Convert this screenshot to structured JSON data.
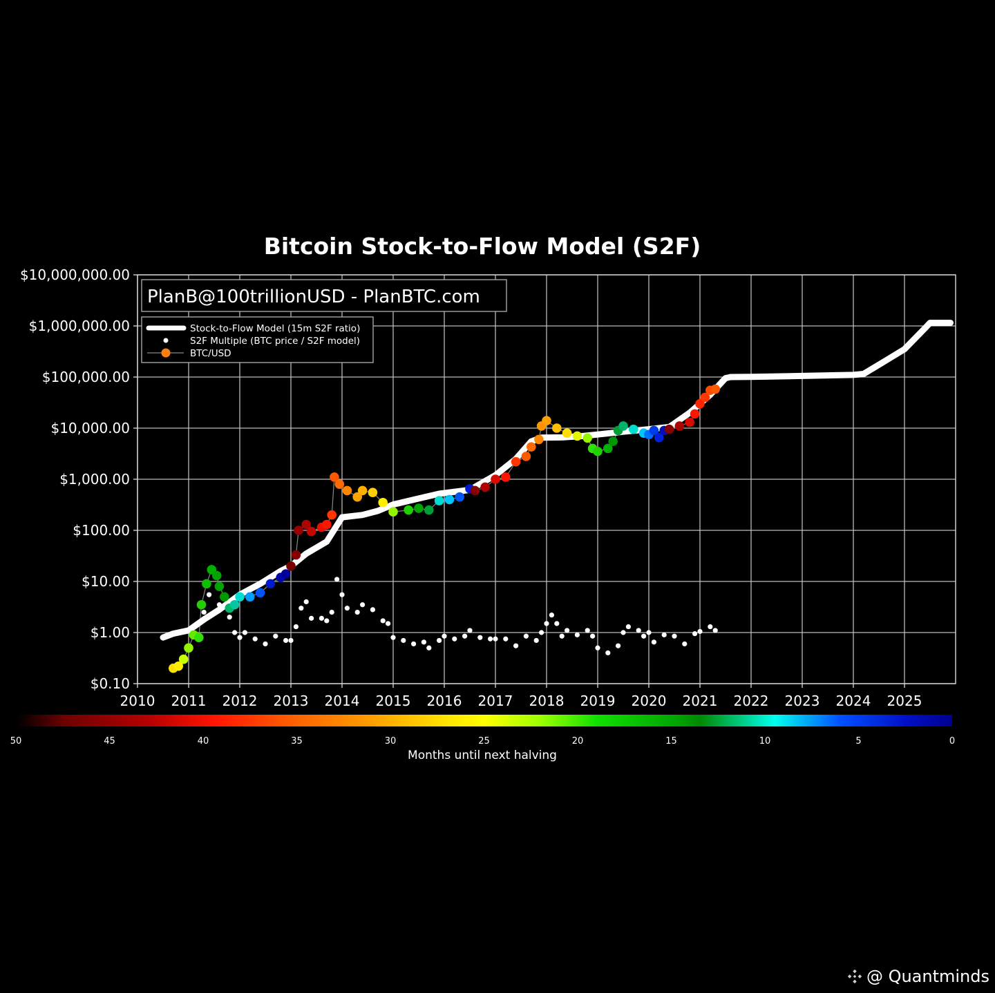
{
  "chart_data": {
    "type": "scatter",
    "title": "Bitcoin Stock-to-Flow Model (S2F)",
    "credit_box": "PlanB@100trillionUSD - PlanBTC.com",
    "xlabel": "",
    "ylabel": "",
    "yscale": "log",
    "ylim": [
      0.1,
      10000000
    ],
    "xlim": [
      2010,
      2026
    ],
    "grid": true,
    "legend_position": "upper left",
    "y_ticks": [
      "$10,000,000.00",
      "$1,000,000.00",
      "$100,000.00",
      "$10,000.00",
      "$1,000.00",
      "$100.00",
      "$10.00",
      "$1.00",
      "$0.10"
    ],
    "y_tick_values": [
      10000000,
      1000000,
      100000,
      10000,
      1000,
      100,
      10,
      1,
      0.1
    ],
    "x_ticks": [
      "2010",
      "2011",
      "2012",
      "2013",
      "2014",
      "2015",
      "2016",
      "2017",
      "2018",
      "2019",
      "2020",
      "2021",
      "2022",
      "2023",
      "2024",
      "2025"
    ],
    "legend": [
      {
        "label": "Stock-to-Flow Model (15m S2F ratio)",
        "marker": "thick-line",
        "color": "#ffffff"
      },
      {
        "label": "S2F Multiple (BTC price / S2F model)",
        "marker": "small-dot",
        "color": "#ffffff"
      },
      {
        "label": "BTC/USD",
        "marker": "line-dot",
        "color": "#ff7f0e"
      }
    ],
    "colorbar": {
      "label": "Months until next halving",
      "ticks": [
        "50",
        "45",
        "40",
        "35",
        "30",
        "25",
        "20",
        "15",
        "10",
        "5",
        "0"
      ],
      "colormap": "jet-like (dark red → red → orange → yellow → green → dark green → cyan → blue → dark blue)",
      "stops": [
        "#2a0000",
        "#a00000",
        "#ff1a00",
        "#ff8c00",
        "#ffe000",
        "#ffff00",
        "#80ff00",
        "#00cc00",
        "#008a00",
        "#00ffee",
        "#0060ff",
        "#0000a0"
      ]
    },
    "series": [
      {
        "name": "Stock-to-Flow Model (15m S2F ratio)",
        "color": "#ffffff",
        "points": [
          [
            2010.5,
            0.8
          ],
          [
            2010.7,
            0.95
          ],
          [
            2011.0,
            1.1
          ],
          [
            2011.3,
            1.8
          ],
          [
            2011.6,
            2.8
          ],
          [
            2012.0,
            5.5
          ],
          [
            2012.4,
            9
          ],
          [
            2012.8,
            16
          ],
          [
            2013.0,
            20
          ],
          [
            2013.3,
            35
          ],
          [
            2013.7,
            60
          ],
          [
            2014.0,
            180
          ],
          [
            2014.4,
            200
          ],
          [
            2014.7,
            240
          ],
          [
            2015.0,
            320
          ],
          [
            2015.5,
            420
          ],
          [
            2015.9,
            520
          ],
          [
            2016.5,
            620
          ],
          [
            2017.0,
            1200
          ],
          [
            2017.4,
            2500
          ],
          [
            2017.7,
            5500
          ],
          [
            2017.9,
            6500
          ],
          [
            2018.3,
            6600
          ],
          [
            2018.7,
            7000
          ],
          [
            2019.0,
            7500
          ],
          [
            2019.5,
            8500
          ],
          [
            2020.0,
            9500
          ],
          [
            2020.4,
            10500
          ],
          [
            2020.8,
            20000
          ],
          [
            2021.2,
            45000
          ],
          [
            2021.5,
            95000
          ],
          [
            2021.6,
            100000
          ],
          [
            2022.0,
            101000
          ],
          [
            2023.0,
            105000
          ],
          [
            2024.0,
            110000
          ],
          [
            2024.2,
            115000
          ],
          [
            2024.7,
            230000
          ],
          [
            2025.0,
            350000
          ],
          [
            2025.4,
            900000
          ],
          [
            2025.5,
            1150000
          ],
          [
            2025.9,
            1150000
          ]
        ]
      },
      {
        "name": "S2F Multiple (BTC price / S2F model)",
        "color": "#ffffff",
        "points": [
          [
            2011.3,
            2.5
          ],
          [
            2011.4,
            5.5
          ],
          [
            2011.6,
            3.5
          ],
          [
            2011.8,
            2.0
          ],
          [
            2011.9,
            1.0
          ],
          [
            2012.0,
            0.8
          ],
          [
            2012.1,
            1.0
          ],
          [
            2012.3,
            0.75
          ],
          [
            2012.5,
            0.6
          ],
          [
            2012.7,
            0.85
          ],
          [
            2012.9,
            0.7
          ],
          [
            2013.0,
            0.7
          ],
          [
            2013.1,
            1.3
          ],
          [
            2013.2,
            3.0
          ],
          [
            2013.3,
            4.0
          ],
          [
            2013.4,
            1.9
          ],
          [
            2013.6,
            1.9
          ],
          [
            2013.7,
            1.7
          ],
          [
            2013.8,
            2.5
          ],
          [
            2013.9,
            11
          ],
          [
            2014.0,
            5.5
          ],
          [
            2014.1,
            3.0
          ],
          [
            2014.3,
            2.5
          ],
          [
            2014.4,
            3.5
          ],
          [
            2014.6,
            2.8
          ],
          [
            2014.8,
            1.7
          ],
          [
            2014.9,
            1.5
          ],
          [
            2015.0,
            0.8
          ],
          [
            2015.2,
            0.7
          ],
          [
            2015.4,
            0.6
          ],
          [
            2015.6,
            0.65
          ],
          [
            2015.7,
            0.5
          ],
          [
            2015.9,
            0.7
          ],
          [
            2016.0,
            0.85
          ],
          [
            2016.2,
            0.75
          ],
          [
            2016.4,
            0.85
          ],
          [
            2016.5,
            1.1
          ],
          [
            2016.7,
            0.8
          ],
          [
            2016.9,
            0.75
          ],
          [
            2017.0,
            0.75
          ],
          [
            2017.2,
            0.75
          ],
          [
            2017.4,
            0.55
          ],
          [
            2017.6,
            0.85
          ],
          [
            2017.8,
            0.7
          ],
          [
            2017.9,
            1.0
          ],
          [
            2018.0,
            1.5
          ],
          [
            2018.1,
            2.2
          ],
          [
            2018.2,
            1.5
          ],
          [
            2018.3,
            0.85
          ],
          [
            2018.4,
            1.1
          ],
          [
            2018.6,
            0.9
          ],
          [
            2018.8,
            1.1
          ],
          [
            2018.9,
            0.85
          ],
          [
            2019.0,
            0.5
          ],
          [
            2019.2,
            0.4
          ],
          [
            2019.4,
            0.55
          ],
          [
            2019.5,
            1.0
          ],
          [
            2019.6,
            1.3
          ],
          [
            2019.8,
            1.1
          ],
          [
            2019.9,
            0.85
          ],
          [
            2020.0,
            1.0
          ],
          [
            2020.1,
            0.65
          ],
          [
            2020.3,
            0.9
          ],
          [
            2020.5,
            0.85
          ],
          [
            2020.7,
            0.6
          ],
          [
            2020.9,
            0.95
          ],
          [
            2021.0,
            1.05
          ],
          [
            2021.2,
            1.3
          ],
          [
            2021.3,
            1.1
          ]
        ]
      },
      {
        "name": "BTC/USD",
        "color_by": "months_until_next_halving",
        "points": [
          [
            2010.7,
            0.2,
            27
          ],
          [
            2010.8,
            0.22,
            26
          ],
          [
            2010.9,
            0.3,
            24
          ],
          [
            2011.0,
            0.5,
            23
          ],
          [
            2011.1,
            0.9,
            22
          ],
          [
            2011.2,
            0.8,
            21
          ],
          [
            2011.25,
            3.5,
            20
          ],
          [
            2011.35,
            9,
            19
          ],
          [
            2011.45,
            17,
            18
          ],
          [
            2011.55,
            13,
            17
          ],
          [
            2011.6,
            8,
            17
          ],
          [
            2011.7,
            5,
            16
          ],
          [
            2011.8,
            3,
            13
          ],
          [
            2011.9,
            3.5,
            12
          ],
          [
            2012.0,
            5,
            11
          ],
          [
            2012.2,
            5,
            8
          ],
          [
            2012.4,
            6,
            6
          ],
          [
            2012.6,
            9,
            3
          ],
          [
            2012.8,
            12,
            1
          ],
          [
            2012.9,
            14,
            0
          ],
          [
            2013.0,
            20,
            47
          ],
          [
            2013.1,
            33,
            46
          ],
          [
            2013.15,
            100,
            45
          ],
          [
            2013.3,
            130,
            44
          ],
          [
            2013.4,
            95,
            43
          ],
          [
            2013.6,
            115,
            41
          ],
          [
            2013.7,
            130,
            40
          ],
          [
            2013.8,
            200,
            38
          ],
          [
            2013.85,
            1100,
            36
          ],
          [
            2013.95,
            800,
            35
          ],
          [
            2014.1,
            600,
            33
          ],
          [
            2014.3,
            450,
            31
          ],
          [
            2014.4,
            600,
            30
          ],
          [
            2014.6,
            550,
            28
          ],
          [
            2014.8,
            350,
            26
          ],
          [
            2015.0,
            230,
            23
          ],
          [
            2015.3,
            250,
            20
          ],
          [
            2015.5,
            270,
            17
          ],
          [
            2015.7,
            250,
            14
          ],
          [
            2015.9,
            380,
            11
          ],
          [
            2016.1,
            400,
            9
          ],
          [
            2016.3,
            450,
            6
          ],
          [
            2016.5,
            650,
            3
          ],
          [
            2016.6,
            600,
            46
          ],
          [
            2016.8,
            700,
            44
          ],
          [
            2017.0,
            1000,
            42
          ],
          [
            2017.2,
            1100,
            40
          ],
          [
            2017.4,
            2200,
            38
          ],
          [
            2017.6,
            2800,
            36
          ],
          [
            2017.7,
            4300,
            35
          ],
          [
            2017.85,
            6000,
            33
          ],
          [
            2017.9,
            11000,
            32
          ],
          [
            2018.0,
            14000,
            31
          ],
          [
            2018.2,
            10000,
            29
          ],
          [
            2018.4,
            8000,
            27
          ],
          [
            2018.6,
            7000,
            25
          ],
          [
            2018.8,
            6400,
            23
          ],
          [
            2018.9,
            4000,
            21
          ],
          [
            2019.0,
            3500,
            20
          ],
          [
            2019.2,
            4000,
            18
          ],
          [
            2019.3,
            5500,
            16
          ],
          [
            2019.4,
            9000,
            14
          ],
          [
            2019.5,
            11000,
            13
          ],
          [
            2019.7,
            9500,
            11
          ],
          [
            2019.9,
            8000,
            9
          ],
          [
            2020.0,
            7500,
            7
          ],
          [
            2020.1,
            9000,
            5
          ],
          [
            2020.2,
            6500,
            4
          ],
          [
            2020.3,
            9000,
            2
          ],
          [
            2020.4,
            9500,
            46
          ],
          [
            2020.6,
            11000,
            44
          ],
          [
            2020.8,
            13000,
            42
          ],
          [
            2020.9,
            19000,
            40
          ],
          [
            2021.0,
            30000,
            39
          ],
          [
            2021.1,
            40000,
            38
          ],
          [
            2021.2,
            55000,
            37
          ],
          [
            2021.3,
            58000,
            36
          ]
        ]
      }
    ]
  },
  "watermark": {
    "text": "@ Quantminds",
    "logo_icon": "binance-diamond-icon"
  }
}
